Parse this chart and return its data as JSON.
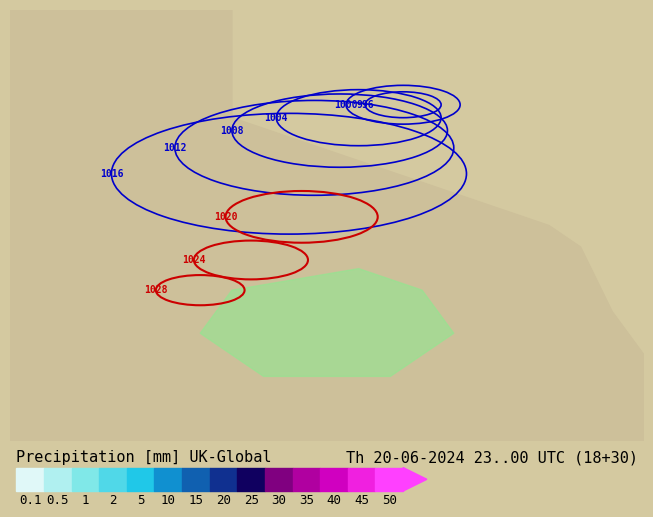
{
  "title_left": "Precipitation [mm] UK-Global",
  "title_right": "Th 20-06-2024 23..00 UTC (18+30)",
  "colorbar_values": [
    0.1,
    0.5,
    1,
    2,
    5,
    10,
    15,
    20,
    25,
    30,
    35,
    40,
    45,
    50
  ],
  "colorbar_colors": [
    "#e0f8f8",
    "#b0f0f0",
    "#80e8e8",
    "#50d8e8",
    "#20c8e8",
    "#1090d0",
    "#1060b0",
    "#103090",
    "#100060",
    "#800080",
    "#b000a0",
    "#d000c0",
    "#f020e0",
    "#ff40ff"
  ],
  "bg_color": "#d4c9a0",
  "map_bg": "#c8bfa0",
  "font_size_title": 11,
  "font_size_tick": 9,
  "figure_width": 6.34,
  "figure_height": 4.9
}
